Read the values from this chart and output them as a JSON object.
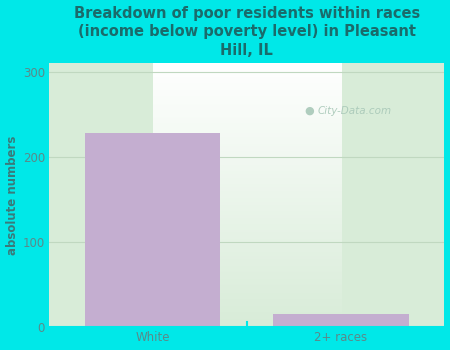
{
  "categories": [
    "White",
    "2+ races"
  ],
  "values": [
    228,
    15
  ],
  "bar_color": "#c4aed0",
  "bar_edgecolor": "none",
  "title": "Breakdown of poor residents within races\n(income below poverty level) in Pleasant\nHill, IL",
  "ylabel": "absolute numbers",
  "ylim": [
    0,
    310
  ],
  "yticks": [
    0,
    100,
    200,
    300
  ],
  "title_color": "#1a6b6b",
  "title_fontsize": 10.5,
  "ylabel_color": "#3a7a7a",
  "ylabel_fontsize": 8.5,
  "tick_color": "#5a8a8a",
  "tick_fontsize": 8.5,
  "background_color": "#00e8e8",
  "plot_bg_top": "#ffffff",
  "plot_bg_bottom": "#d8ecd8",
  "watermark_text": "City-Data.com",
  "watermark_color": "#a8c8b8",
  "grid_color": "#c0d8c0",
  "bar_width": 0.72,
  "xaxis_line_color": "#00e8e8"
}
